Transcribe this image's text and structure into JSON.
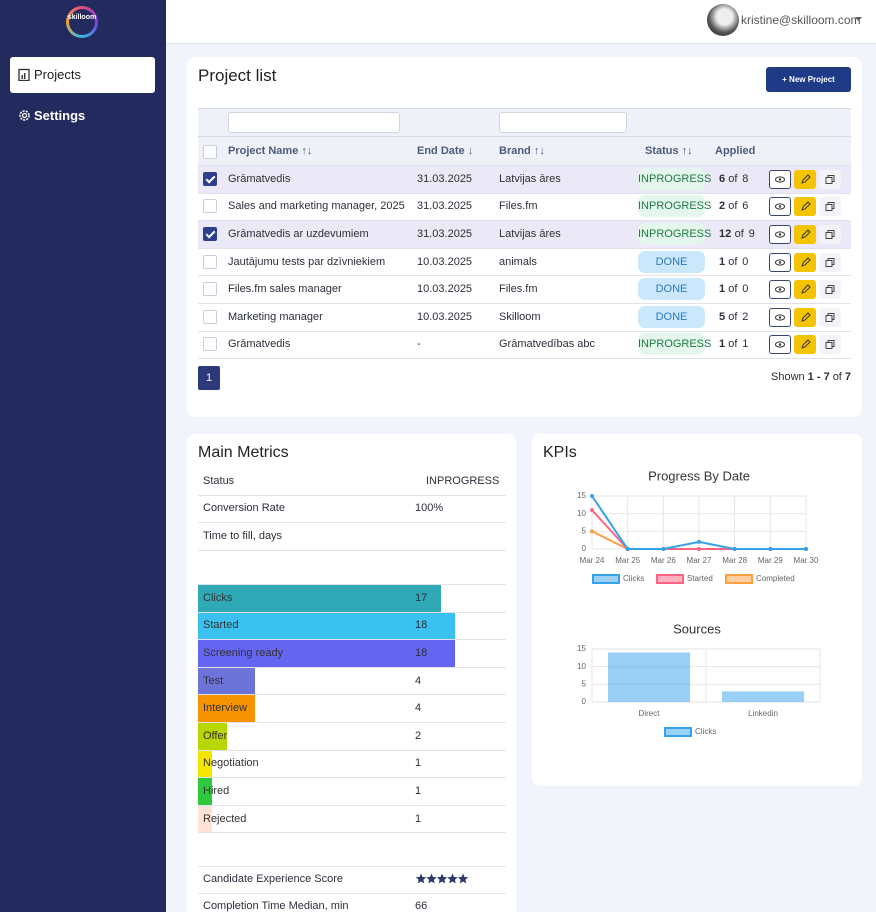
{
  "sidebar": {
    "logo": "skilloom",
    "nav": [
      "Projects",
      "Settings"
    ]
  },
  "header": {
    "user_email": "kristine@skilloom.com"
  },
  "project_list": {
    "title": "Project list",
    "new_button": "+ New Project",
    "columns": [
      "Project Name ↑↓",
      "End Date ↓",
      "Brand ↑↓",
      "Status ↑↓",
      "Applied"
    ],
    "of_word": "of",
    "rows": [
      {
        "checked": true,
        "name": "Grāmatvedis",
        "end_date": "31.03.2025",
        "brand": "Latvijas āres",
        "status": "INPROGRESS",
        "applied": 6,
        "total": 8
      },
      {
        "checked": false,
        "name": "Sales and marketing manager, 2025",
        "end_date": "31.03.2025",
        "brand": "Files.fm",
        "status": "INPROGRESS",
        "applied": 2,
        "total": 6
      },
      {
        "checked": true,
        "name": "Grāmatvedis ar uzdevumiem",
        "end_date": "31.03.2025",
        "brand": "Latvijas āres",
        "status": "INPROGRESS",
        "applied": 12,
        "total": 9
      },
      {
        "checked": false,
        "name": "Jautājumu tests par dzīvniekiem",
        "end_date": "10.03.2025",
        "brand": "animals",
        "status": "DONE",
        "applied": 1,
        "total": 0
      },
      {
        "checked": false,
        "name": "Files.fm sales manager",
        "end_date": "10.03.2025",
        "brand": "Files.fm",
        "status": "DONE",
        "applied": 1,
        "total": 0
      },
      {
        "checked": false,
        "name": "Marketing manager",
        "end_date": "10.03.2025",
        "brand": "Skilloom",
        "status": "DONE",
        "applied": 5,
        "total": 2
      },
      {
        "checked": false,
        "name": "Grāmatvedis",
        "end_date": "-",
        "brand": "Grāmatvedības abc",
        "status": "INPROGRESS",
        "applied": 1,
        "total": 1
      }
    ],
    "page": "1",
    "shown": {
      "prefix": "Shown",
      "range": "1 - 7",
      "of": "of",
      "total": "7"
    }
  },
  "main_metrics": {
    "title": "Main Metrics",
    "rows": [
      {
        "label": "Status",
        "value": "INPROGRESS"
      },
      {
        "label": "Conversion Rate",
        "value": "100%"
      },
      {
        "label": "Time to fill, days"
      }
    ],
    "funnel": [
      {
        "label": "Clicks",
        "value": 17,
        "color": "#2ea9b5"
      },
      {
        "label": "Started",
        "value": 18,
        "color": "#3bc1ef"
      },
      {
        "label": "Screening ready",
        "value": 18,
        "color": "#6466f1"
      },
      {
        "label": "Test",
        "value": 4,
        "color": "#6c74da"
      },
      {
        "label": "Interview",
        "value": 4,
        "color": "#f59300"
      },
      {
        "label": "Offer",
        "value": 2,
        "color": "#b8d600"
      },
      {
        "label": "Negotiation",
        "value": 1,
        "color": "#f3e600"
      },
      {
        "label": "Hired",
        "value": 1,
        "color": "#2fc93e"
      },
      {
        "label": "Rejected",
        "value": 1,
        "color": "#fde2d5"
      }
    ],
    "score": {
      "label": "Candidate Experience Score",
      "stars": 5
    },
    "median": {
      "label": "Completion Time Median, min",
      "value": 66
    }
  },
  "kpis": {
    "title": "KPIs"
  },
  "chart_data": [
    {
      "type": "line",
      "title": "Progress By Date",
      "categories": [
        "Mar 24",
        "Mar 25",
        "Mar 26",
        "Mar 27",
        "Mar 28",
        "Mar 29",
        "Mar 30"
      ],
      "series": [
        {
          "name": "Clicks",
          "color": "#36a2eb",
          "values": [
            15,
            0,
            0,
            2,
            0,
            0,
            0
          ]
        },
        {
          "name": "Started",
          "color": "#ff6384",
          "values": [
            11,
            0,
            0,
            0,
            0,
            0,
            0
          ]
        },
        {
          "name": "Completed",
          "color": "#ff9f40",
          "values": [
            5,
            0,
            0,
            0,
            0,
            0,
            0
          ]
        }
      ],
      "ylim": [
        0,
        15
      ],
      "yticks": [
        0,
        5,
        10,
        15
      ],
      "grid": true,
      "legend": "bottom"
    },
    {
      "type": "bar",
      "title": "Sources",
      "categories": [
        "Direct",
        "Linkedin"
      ],
      "series": [
        {
          "name": "Clicks",
          "color": "#36a2eb",
          "values": [
            14,
            3
          ]
        }
      ],
      "ylim": [
        0,
        15
      ],
      "yticks": [
        0,
        5,
        10,
        15
      ],
      "grid": true,
      "legend": "bottom"
    }
  ]
}
